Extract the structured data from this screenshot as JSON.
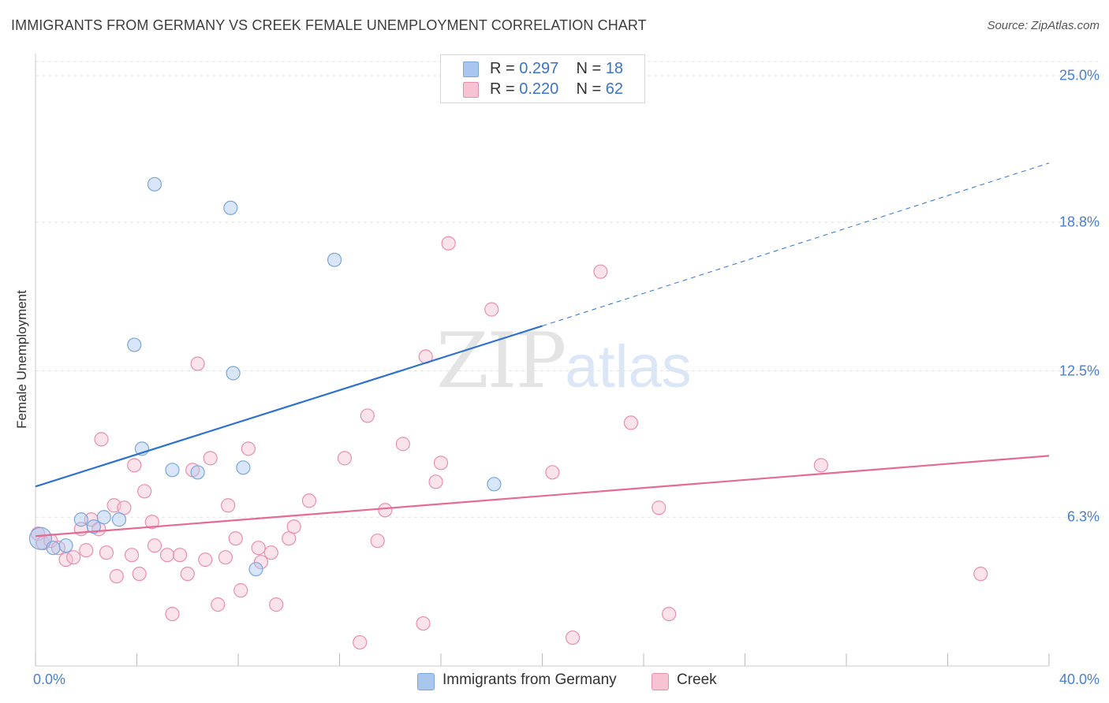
{
  "title": "IMMIGRANTS FROM GERMANY VS CREEK FEMALE UNEMPLOYMENT CORRELATION CHART",
  "source": "Source: ZipAtlas.com",
  "watermark": {
    "zip": "ZIP",
    "atlas": "atlas"
  },
  "legend_top": {
    "rows": [
      {
        "r_label": "R =",
        "r_value": "0.297",
        "n_label": "N =",
        "n_value": "18"
      },
      {
        "r_label": "R =",
        "r_value": "0.220",
        "n_label": "N =",
        "n_value": "62"
      }
    ]
  },
  "chart_data": {
    "type": "scatter",
    "title": "IMMIGRANTS FROM GERMANY VS CREEK FEMALE UNEMPLOYMENT CORRELATION CHART",
    "xlabel": "",
    "ylabel": "Female Unemployment",
    "xlim": [
      0,
      40
    ],
    "ylim": [
      0,
      25
    ],
    "x_tick_labels": [
      "0.0%",
      "40.0%"
    ],
    "y_ticks": [
      6.3,
      12.5,
      18.8,
      25.0
    ],
    "y_tick_labels": [
      "6.3%",
      "12.5%",
      "18.8%",
      "25.0%"
    ],
    "grid": true,
    "legend_position": "bottom",
    "series": [
      {
        "name": "Immigrants from Germany",
        "color": "#a9c7ee",
        "edge": "#7aa6dc",
        "line_color": "#2f72cc",
        "r": 0.297,
        "n": 18,
        "points": [
          [
            0.2,
            5.4
          ],
          [
            0.7,
            5.0
          ],
          [
            1.2,
            5.1
          ],
          [
            1.8,
            6.2
          ],
          [
            2.3,
            5.9
          ],
          [
            2.7,
            6.3
          ],
          [
            3.3,
            6.2
          ],
          [
            3.9,
            13.6
          ],
          [
            4.2,
            9.2
          ],
          [
            4.7,
            20.4
          ],
          [
            5.4,
            8.3
          ],
          [
            6.4,
            8.2
          ],
          [
            7.7,
            19.4
          ],
          [
            7.8,
            12.4
          ],
          [
            8.2,
            8.4
          ],
          [
            8.7,
            4.1
          ],
          [
            11.8,
            17.2
          ],
          [
            18.1,
            7.7
          ]
        ],
        "trend": {
          "x0": 0,
          "y0": 7.6,
          "x1": 20,
          "y1": 14.4,
          "dashed_to_x": 40,
          "dashed_to_y": 21.3
        }
      },
      {
        "name": "Creek",
        "color": "#f7c2d2",
        "edge": "#e88fad",
        "line_color": "#e46b95",
        "r": 0.22,
        "n": 62,
        "points": [
          [
            0.1,
            5.6
          ],
          [
            0.3,
            5.2
          ],
          [
            0.6,
            5.3
          ],
          [
            0.9,
            5.0
          ],
          [
            1.2,
            4.5
          ],
          [
            1.5,
            4.6
          ],
          [
            1.8,
            5.8
          ],
          [
            2.0,
            4.9
          ],
          [
            2.2,
            6.2
          ],
          [
            2.5,
            5.8
          ],
          [
            2.6,
            9.6
          ],
          [
            2.8,
            4.8
          ],
          [
            3.1,
            6.8
          ],
          [
            3.2,
            3.8
          ],
          [
            3.5,
            6.7
          ],
          [
            3.8,
            4.7
          ],
          [
            3.9,
            8.5
          ],
          [
            4.1,
            3.9
          ],
          [
            4.3,
            7.4
          ],
          [
            4.6,
            6.1
          ],
          [
            4.7,
            5.1
          ],
          [
            5.2,
            4.7
          ],
          [
            5.4,
            2.2
          ],
          [
            5.7,
            4.7
          ],
          [
            6.0,
            3.9
          ],
          [
            6.2,
            8.3
          ],
          [
            6.4,
            12.8
          ],
          [
            6.7,
            4.5
          ],
          [
            6.9,
            8.8
          ],
          [
            7.2,
            2.6
          ],
          [
            7.5,
            4.6
          ],
          [
            7.6,
            6.8
          ],
          [
            7.9,
            5.4
          ],
          [
            8.1,
            3.2
          ],
          [
            8.4,
            9.2
          ],
          [
            8.8,
            5.0
          ],
          [
            8.9,
            4.4
          ],
          [
            9.3,
            4.8
          ],
          [
            9.5,
            2.6
          ],
          [
            10.0,
            5.4
          ],
          [
            10.2,
            5.9
          ],
          [
            10.8,
            7.0
          ],
          [
            12.2,
            8.8
          ],
          [
            12.8,
            1.0
          ],
          [
            13.1,
            10.6
          ],
          [
            13.5,
            5.3
          ],
          [
            14.5,
            9.4
          ],
          [
            15.3,
            1.8
          ],
          [
            15.4,
            13.1
          ],
          [
            15.8,
            7.8
          ],
          [
            16.0,
            8.6
          ],
          [
            16.3,
            17.9
          ],
          [
            18.0,
            15.1
          ],
          [
            20.4,
            8.2
          ],
          [
            21.2,
            1.2
          ],
          [
            22.3,
            16.7
          ],
          [
            23.5,
            10.3
          ],
          [
            24.6,
            6.7
          ],
          [
            25.0,
            2.2
          ],
          [
            31.0,
            8.5
          ],
          [
            37.3,
            3.9
          ],
          [
            13.8,
            6.6
          ]
        ],
        "trend": {
          "x0": 0,
          "y0": 5.5,
          "x1": 40,
          "y1": 8.9
        }
      }
    ]
  },
  "legend_bottom": [
    {
      "label": "Immigrants from Germany"
    },
    {
      "label": "Creek"
    }
  ]
}
